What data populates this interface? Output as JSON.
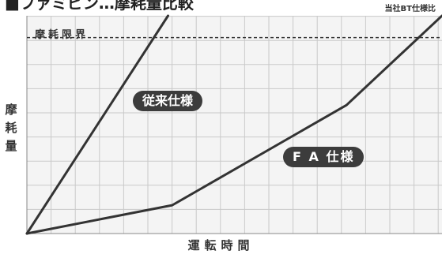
{
  "title": "■ファミピン…摩耗量比較",
  "note": "当社BT仕様比",
  "chart_data": {
    "type": "line",
    "xlabel": "運転時間",
    "ylabel": "摩\n耗\n量",
    "xlim": [
      0,
      100
    ],
    "ylim": [
      0,
      100
    ],
    "grid": true,
    "limit": {
      "label": "摩耗限界",
      "value": 90
    },
    "series": [
      {
        "name": "従来仕様",
        "x": [
          0,
          34
        ],
        "y": [
          0,
          100
        ]
      },
      {
        "name": "F A 仕様",
        "x": [
          0,
          35,
          77,
          100
        ],
        "y": [
          0,
          13,
          59,
          100
        ]
      }
    ]
  },
  "colors": {
    "line": "#333333",
    "grid": "#c9c9c9",
    "plot_bg": "#f4f4f4",
    "pill": "#3c3c3c"
  }
}
